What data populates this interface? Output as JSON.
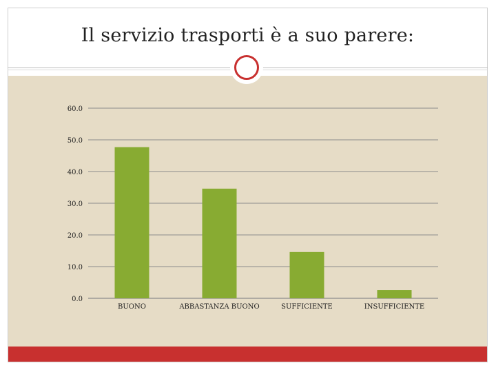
{
  "slide": {
    "title": "Il servizio trasporti è a suo parere:"
  },
  "colors": {
    "bar": "#88ab32",
    "panel": "#e6dcc6",
    "accent": "#c8302f",
    "grid": "#8c8c8c"
  },
  "chart_data": {
    "type": "bar",
    "categories": [
      "BUONO",
      "ABBASTANZA BUONO",
      "SUFFICIENTE",
      "INSUFFICIENTE"
    ],
    "values": [
      47.7,
      34.6,
      14.6,
      2.6
    ],
    "ylim": [
      0,
      60
    ],
    "yticks": [
      "0.0",
      "10.0",
      "20.0",
      "30.0",
      "40.0",
      "50.0",
      "60.0"
    ],
    "grid": true,
    "legend": "none"
  }
}
